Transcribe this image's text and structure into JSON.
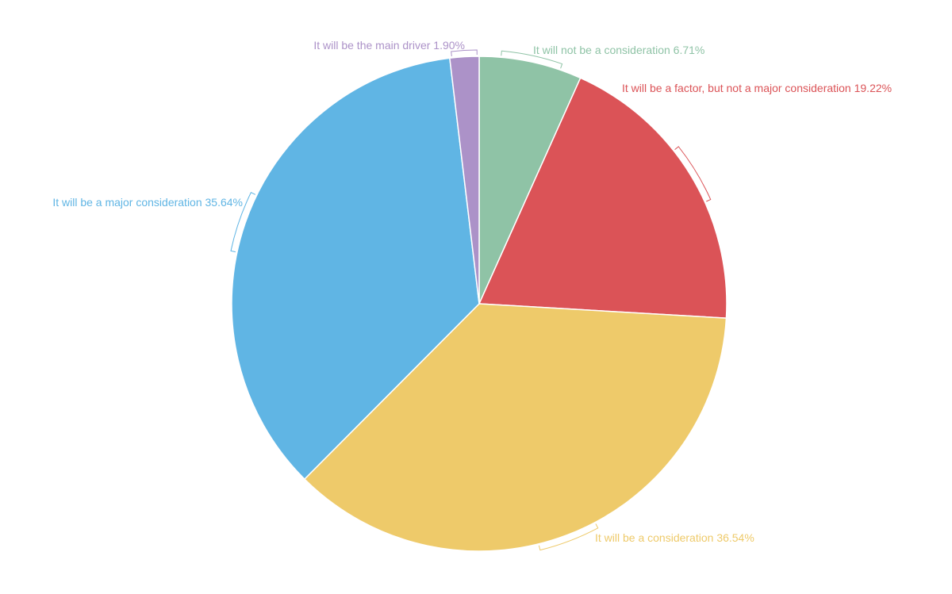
{
  "chart_data": {
    "type": "pie",
    "title": "",
    "slices": [
      {
        "label": "It will not be a consideration",
        "value": 6.71,
        "value_label": "6.71%",
        "color": "#8fc3a6"
      },
      {
        "label": "It will be a factor, but not a major consideration",
        "value": 19.22,
        "value_label": "19.22%",
        "color": "#db5357"
      },
      {
        "label": "It will be a consideration",
        "value": 36.54,
        "value_label": "36.54%",
        "color": "#eeca6a"
      },
      {
        "label": "It will be a major consideration",
        "value": 35.64,
        "value_label": "35.64%",
        "color": "#60b5e4"
      },
      {
        "label": "It will be the main driver",
        "value": 1.9,
        "value_label": "1.90%",
        "color": "#ac92c8"
      }
    ],
    "start_angle_deg": 0,
    "direction": "clockwise",
    "legend": "none"
  }
}
